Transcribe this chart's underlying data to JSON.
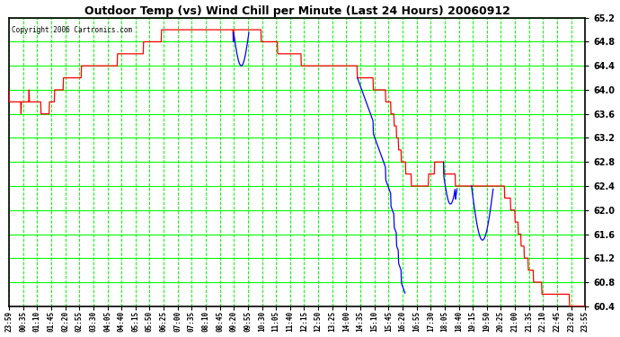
{
  "title": "Outdoor Temp (vs) Wind Chill per Minute (Last 24 Hours) 20060912",
  "copyright": "Copyright 2006 Cartronics.com",
  "bg_color": "#ffffff",
  "plot_bg_color": "#ffffff",
  "grid_major_color": "#00ff00",
  "outer_line_color": "#000000",
  "temp_color": "#ff0000",
  "chill_color": "#0000ff",
  "ylim": [
    60.4,
    65.2
  ],
  "yticks": [
    60.4,
    60.8,
    61.2,
    61.6,
    62.0,
    62.4,
    62.8,
    63.2,
    63.6,
    64.0,
    64.4,
    64.8,
    65.2
  ],
  "xtick_labels": [
    "23:59",
    "00:35",
    "01:10",
    "01:45",
    "02:20",
    "02:55",
    "03:30",
    "04:05",
    "04:40",
    "05:15",
    "05:50",
    "06:25",
    "07:00",
    "07:35",
    "08:10",
    "08:45",
    "09:20",
    "09:55",
    "10:30",
    "11:05",
    "11:40",
    "12:15",
    "12:50",
    "13:25",
    "14:00",
    "14:35",
    "15:10",
    "15:45",
    "16:20",
    "16:55",
    "17:30",
    "18:05",
    "18:40",
    "19:15",
    "19:50",
    "20:25",
    "21:00",
    "21:35",
    "22:10",
    "22:45",
    "23:20",
    "23:55"
  ],
  "figsize": [
    6.9,
    3.75
  ],
  "dpi": 100
}
